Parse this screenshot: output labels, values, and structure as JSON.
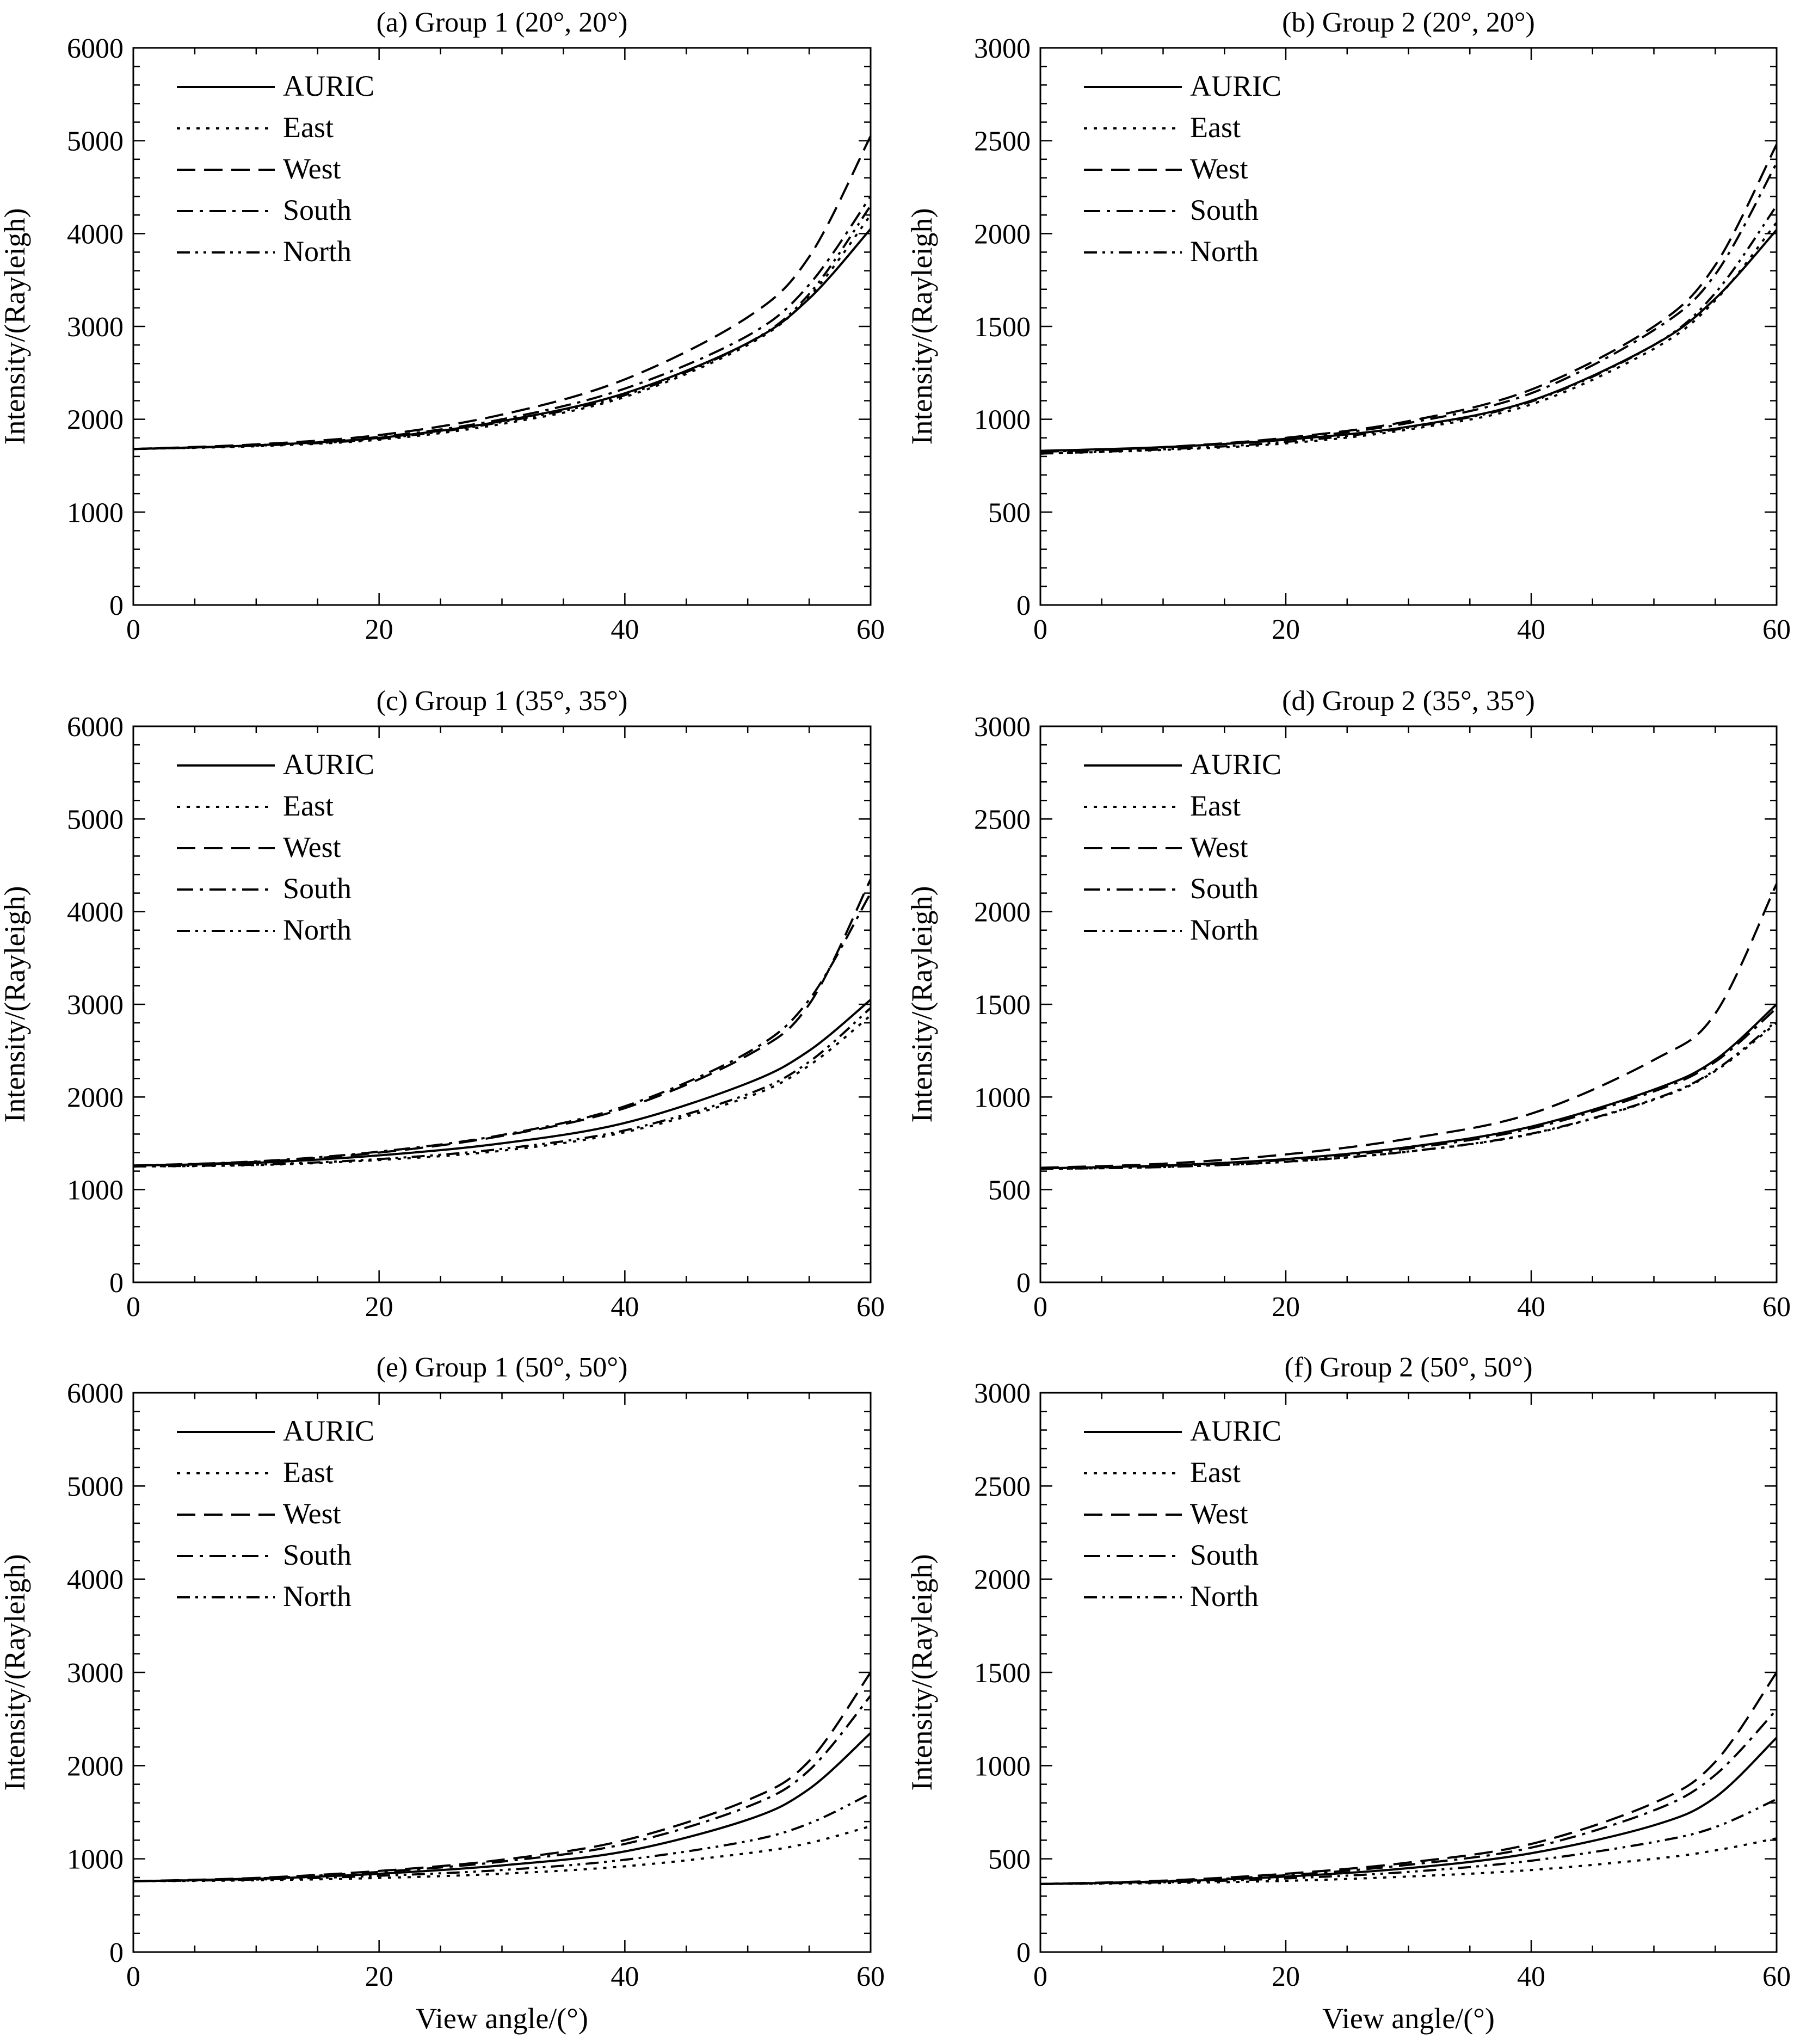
{
  "legend_labels": [
    "AURIC",
    "East",
    "West",
    "South",
    "North"
  ],
  "line_styles": {
    "AURIC": "solid",
    "East": "dotted",
    "West": "dashed",
    "South": "dash-dot",
    "North": "dash-dot-dot"
  },
  "colors": {
    "lines": "#000000",
    "background": "#ffffff"
  },
  "chart_data": [
    {
      "id": "a",
      "type": "line",
      "title": "(a) Group 1 (20°, 20°)",
      "xlabel": "",
      "ylabel": "Intensity/(Rayleigh)",
      "xlim": [
        0,
        60
      ],
      "ylim": [
        0,
        6000
      ],
      "xticks": [
        0,
        20,
        40,
        60
      ],
      "xtick_labels": [
        "0",
        "20",
        "40",
        "60"
      ],
      "yticks": [
        0,
        1000,
        2000,
        3000,
        4000,
        5000,
        6000
      ],
      "ytick_labels": [
        "0",
        "1000",
        "2000",
        "3000",
        "4000",
        "5000",
        "6000"
      ],
      "legend": "top-left",
      "grid": false,
      "x": [
        0,
        10,
        20,
        30,
        40,
        50,
        55,
        60
      ],
      "series": [
        {
          "name": "AURIC",
          "values": [
            1680,
            1720,
            1800,
            1980,
            2280,
            2820,
            3300,
            4050
          ]
        },
        {
          "name": "East",
          "values": [
            1680,
            1710,
            1780,
            1950,
            2240,
            2800,
            3320,
            4200
          ]
        },
        {
          "name": "West",
          "values": [
            1680,
            1730,
            1830,
            2050,
            2430,
            3100,
            3750,
            5050
          ]
        },
        {
          "name": "South",
          "values": [
            1680,
            1720,
            1810,
            2000,
            2330,
            2900,
            3450,
            4400
          ]
        },
        {
          "name": "North",
          "values": [
            1680,
            1715,
            1790,
            1970,
            2260,
            2820,
            3350,
            4300
          ]
        }
      ]
    },
    {
      "id": "b",
      "type": "line",
      "title": "(b) Group 2 (20°, 20°)",
      "xlabel": "",
      "ylabel": "Intensity/(Rayleigh)",
      "xlim": [
        0,
        60
      ],
      "ylim": [
        0,
        3000
      ],
      "xticks": [
        0,
        20,
        40,
        60
      ],
      "xtick_labels": [
        "0",
        "20",
        "40",
        "60"
      ],
      "yticks": [
        0,
        500,
        1000,
        1500,
        2000,
        2500,
        3000
      ],
      "ytick_labels": [
        "0",
        "500",
        "1000",
        "1500",
        "2000",
        "2500",
        "3000"
      ],
      "legend": "top-left",
      "grid": false,
      "x": [
        0,
        10,
        20,
        30,
        40,
        50,
        55,
        60
      ],
      "series": [
        {
          "name": "AURIC",
          "values": [
            830,
            850,
            890,
            960,
            1100,
            1400,
            1650,
            2020
          ]
        },
        {
          "name": "East",
          "values": [
            815,
            835,
            870,
            945,
            1080,
            1380,
            1640,
            2060
          ]
        },
        {
          "name": "West",
          "values": [
            825,
            850,
            900,
            990,
            1160,
            1500,
            1830,
            2480
          ]
        },
        {
          "name": "South",
          "values": [
            825,
            848,
            895,
            980,
            1140,
            1480,
            1780,
            2380
          ]
        },
        {
          "name": "North",
          "values": [
            815,
            838,
            878,
            955,
            1095,
            1400,
            1680,
            2150
          ]
        }
      ]
    },
    {
      "id": "c",
      "type": "line",
      "title": "(c) Group 1 (35°, 35°)",
      "xlabel": "",
      "ylabel": "Intensity/(Rayleigh)",
      "xlim": [
        0,
        60
      ],
      "ylim": [
        0,
        6000
      ],
      "xticks": [
        0,
        20,
        40,
        60
      ],
      "xtick_labels": [
        "0",
        "20",
        "40",
        "60"
      ],
      "yticks": [
        0,
        1000,
        2000,
        3000,
        4000,
        5000,
        6000
      ],
      "ytick_labels": [
        "0",
        "1000",
        "2000",
        "3000",
        "4000",
        "5000",
        "6000"
      ],
      "legend": "top-left",
      "grid": false,
      "x": [
        0,
        10,
        20,
        30,
        40,
        50,
        55,
        60
      ],
      "series": [
        {
          "name": "AURIC",
          "values": [
            1260,
            1290,
            1370,
            1500,
            1720,
            2150,
            2500,
            3050
          ]
        },
        {
          "name": "East",
          "values": [
            1250,
            1265,
            1320,
            1420,
            1620,
            2000,
            2340,
            2880
          ]
        },
        {
          "name": "West",
          "values": [
            1260,
            1300,
            1400,
            1580,
            1880,
            2450,
            3000,
            4350
          ]
        },
        {
          "name": "South",
          "values": [
            1260,
            1305,
            1410,
            1590,
            1900,
            2480,
            3050,
            4200
          ]
        },
        {
          "name": "North",
          "values": [
            1250,
            1270,
            1330,
            1440,
            1640,
            2030,
            2380,
            2960
          ]
        }
      ]
    },
    {
      "id": "d",
      "type": "line",
      "title": "(d) Group 2 (35°, 35°)",
      "xlabel": "",
      "ylabel": "Intensity/(Rayleigh)",
      "xlim": [
        0,
        60
      ],
      "ylim": [
        0,
        3000
      ],
      "xticks": [
        0,
        20,
        40,
        60
      ],
      "xtick_labels": [
        "0",
        "20",
        "40",
        "60"
      ],
      "yticks": [
        0,
        500,
        1000,
        1500,
        2000,
        2500,
        3000
      ],
      "ytick_labels": [
        "0",
        "500",
        "1000",
        "1500",
        "2000",
        "2500",
        "3000"
      ],
      "legend": "top-left",
      "grid": false,
      "x": [
        0,
        10,
        20,
        30,
        40,
        50,
        55,
        60
      ],
      "series": [
        {
          "name": "AURIC",
          "values": [
            615,
            630,
            665,
            730,
            840,
            1040,
            1200,
            1500
          ]
        },
        {
          "name": "East",
          "values": [
            612,
            622,
            650,
            705,
            800,
            985,
            1140,
            1400
          ]
        },
        {
          "name": "West",
          "values": [
            618,
            640,
            690,
            775,
            910,
            1200,
            1450,
            2150
          ]
        },
        {
          "name": "South",
          "values": [
            615,
            628,
            660,
            722,
            830,
            1030,
            1190,
            1480
          ]
        },
        {
          "name": "North",
          "values": [
            612,
            622,
            651,
            706,
            802,
            988,
            1145,
            1410
          ]
        }
      ]
    },
    {
      "id": "e",
      "type": "line",
      "title": "(e) Group 1 (50°, 50°)",
      "xlabel": "View angle/(°)",
      "ylabel": "Intensity/(Rayleigh)",
      "xlim": [
        0,
        60
      ],
      "ylim": [
        0,
        6000
      ],
      "xticks": [
        0,
        20,
        40,
        60
      ],
      "xtick_labels": [
        "0",
        "20",
        "40",
        "60"
      ],
      "yticks": [
        0,
        1000,
        2000,
        3000,
        4000,
        5000,
        6000
      ],
      "ytick_labels": [
        "0",
        "1000",
        "2000",
        "3000",
        "4000",
        "5000",
        "6000"
      ],
      "legend": "top-left",
      "grid": false,
      "x": [
        0,
        10,
        20,
        30,
        40,
        50,
        55,
        60
      ],
      "series": [
        {
          "name": "AURIC",
          "values": [
            760,
            785,
            840,
            930,
            1080,
            1420,
            1750,
            2350
          ]
        },
        {
          "name": "East",
          "values": [
            760,
            770,
            795,
            840,
            920,
            1060,
            1170,
            1350
          ]
        },
        {
          "name": "West",
          "values": [
            760,
            795,
            870,
            990,
            1200,
            1630,
            2050,
            3000
          ]
        },
        {
          "name": "South",
          "values": [
            760,
            790,
            860,
            970,
            1160,
            1560,
            1950,
            2750
          ]
        },
        {
          "name": "North",
          "values": [
            760,
            778,
            818,
            880,
            990,
            1190,
            1380,
            1700
          ]
        }
      ]
    },
    {
      "id": "f",
      "type": "line",
      "title": "(f) Group 2 (50°, 50°)",
      "xlabel": "View angle/(°)",
      "ylabel": "Intensity/(Rayleigh)",
      "xlim": [
        0,
        60
      ],
      "ylim": [
        0,
        3000
      ],
      "xticks": [
        0,
        20,
        40,
        60
      ],
      "xtick_labels": [
        "0",
        "20",
        "40",
        "60"
      ],
      "yticks": [
        0,
        500,
        1000,
        1500,
        2000,
        2500,
        3000
      ],
      "ytick_labels": [
        "0",
        "500",
        "1000",
        "1500",
        "2000",
        "2500",
        "3000"
      ],
      "legend": "top-left",
      "grid": false,
      "x": [
        0,
        10,
        20,
        30,
        40,
        50,
        55,
        60
      ],
      "series": [
        {
          "name": "AURIC",
          "values": [
            365,
            378,
            405,
            450,
            530,
            680,
            830,
            1150
          ]
        },
        {
          "name": "East",
          "values": [
            365,
            370,
            382,
            405,
            440,
            500,
            545,
            610
          ]
        },
        {
          "name": "West",
          "values": [
            365,
            383,
            420,
            480,
            580,
            800,
            1020,
            1500
          ]
        },
        {
          "name": "South",
          "values": [
            365,
            380,
            412,
            468,
            560,
            760,
            950,
            1300
          ]
        },
        {
          "name": "North",
          "values": [
            365,
            374,
            395,
            430,
            490,
            590,
            670,
            820
          ]
        }
      ]
    }
  ]
}
